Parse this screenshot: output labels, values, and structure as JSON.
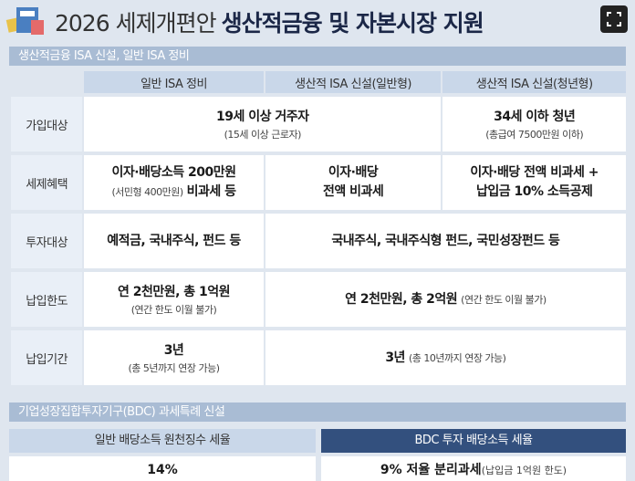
{
  "header": {
    "title_regular": "2026 세제개편안",
    "title_bold": "생산적금융 및 자본시장 지원"
  },
  "isa": {
    "section_title": "생산적금융 ISA 신설, 일반 ISA 정비",
    "columns": [
      "일반 ISA 정비",
      "생산적 ISA 신설(일반형)",
      "생산적 ISA 신설(청년형)"
    ],
    "rows": [
      {
        "label": "가입대상",
        "cells": [
          {
            "main": "19세 이상 거주자",
            "note": "(15세 이상 근로자)"
          },
          {
            "main": "34세 이하 청년",
            "note": "(총급여 7500만원 이하)"
          }
        ]
      },
      {
        "label": "세제혜택",
        "cells": [
          {
            "main": "이자·배당소득 200만원",
            "note": "(서민형 400만원)",
            "main2": "비과세 등"
          },
          {
            "main": "이자·배당",
            "main2": "전액 비과세"
          },
          {
            "main": "이자·배당 전액 비과세 +",
            "main2": "납입금 10% 소득공제"
          }
        ]
      },
      {
        "label": "투자대상",
        "cells": [
          {
            "main": "예적금, 국내주식, 펀드 등"
          },
          {
            "main": "국내주식, 국내주식형 펀드, 국민성장펀드 등"
          }
        ]
      },
      {
        "label": "납입한도",
        "cells": [
          {
            "main": "연 2천만원, 총 1억원",
            "note": "(연간 한도 이월 불가)"
          },
          {
            "main": "연 2천만원, 총 2억원",
            "note": "(연간 한도 이월 불가)"
          }
        ]
      },
      {
        "label": "납입기간",
        "cells": [
          {
            "main": "3년",
            "note": "(총 5년까지 연장 가능)"
          },
          {
            "main": "3년",
            "note": "(총 10년까지 연장 가능)"
          }
        ]
      }
    ]
  },
  "bdc": {
    "section_title": "기업성장집합투자기구(BDC) 과세특례 신설",
    "columns": [
      "일반 배당소득 원천징수 세율",
      "BDC 투자 배당소득 세율"
    ],
    "values": [
      {
        "main": "14%"
      },
      {
        "main": "9% 저율 분리과세",
        "note": "(납입금 1억원 한도)"
      }
    ]
  }
}
